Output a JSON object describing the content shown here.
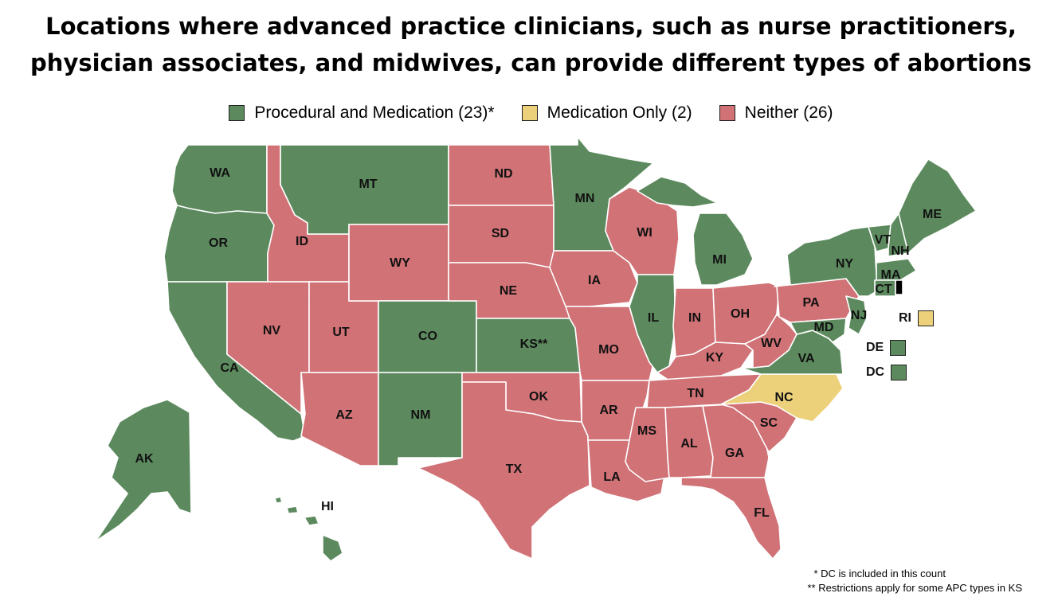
{
  "title": {
    "line1": "Locations where advanced practice clinicians, such as nurse practitioners,",
    "line2": "physician associates, and midwives, can provide different types of abortions"
  },
  "colors": {
    "both": "#5c8a5e",
    "medication": "#ecd17a",
    "neither": "#d07276"
  },
  "legend": [
    {
      "key": "both",
      "label": "Procedural and Medication (23)*"
    },
    {
      "key": "medication",
      "label": "Medication Only (2)"
    },
    {
      "key": "neither",
      "label": "Neither (26)"
    }
  ],
  "states": {
    "WA": {
      "label": "WA",
      "category": "both"
    },
    "OR": {
      "label": "OR",
      "category": "both"
    },
    "CA": {
      "label": "CA",
      "category": "both"
    },
    "MT": {
      "label": "MT",
      "category": "both"
    },
    "CO": {
      "label": "CO",
      "category": "both"
    },
    "NM": {
      "label": "NM",
      "category": "both"
    },
    "KS": {
      "label": "KS**",
      "category": "both"
    },
    "MN": {
      "label": "MN",
      "category": "both"
    },
    "IL": {
      "label": "IL",
      "category": "both"
    },
    "MI": {
      "label": "MI",
      "category": "both"
    },
    "NY": {
      "label": "NY",
      "category": "both"
    },
    "VT": {
      "label": "VT",
      "category": "both"
    },
    "NH": {
      "label": "NH",
      "category": "both"
    },
    "ME": {
      "label": "ME",
      "category": "both"
    },
    "MA": {
      "label": "MA",
      "category": "both"
    },
    "CT": {
      "label": "CT",
      "category": "both"
    },
    "NJ": {
      "label": "NJ",
      "category": "both"
    },
    "MD": {
      "label": "MD",
      "category": "both"
    },
    "VA": {
      "label": "VA",
      "category": "both"
    },
    "AK": {
      "label": "AK",
      "category": "both"
    },
    "HI": {
      "label": "HI",
      "category": "both"
    },
    "NC": {
      "label": "NC",
      "category": "medication"
    },
    "ID": {
      "label": "ID",
      "category": "neither"
    },
    "NV": {
      "label": "NV",
      "category": "neither"
    },
    "UT": {
      "label": "UT",
      "category": "neither"
    },
    "AZ": {
      "label": "AZ",
      "category": "neither"
    },
    "WY": {
      "label": "WY",
      "category": "neither"
    },
    "ND": {
      "label": "ND",
      "category": "neither"
    },
    "SD": {
      "label": "SD",
      "category": "neither"
    },
    "NE": {
      "label": "NE",
      "category": "neither"
    },
    "OK": {
      "label": "OK",
      "category": "neither"
    },
    "TX": {
      "label": "TX",
      "category": "neither"
    },
    "IA": {
      "label": "IA",
      "category": "neither"
    },
    "MO": {
      "label": "MO",
      "category": "neither"
    },
    "AR": {
      "label": "AR",
      "category": "neither"
    },
    "LA": {
      "label": "LA",
      "category": "neither"
    },
    "WI": {
      "label": "WI",
      "category": "neither"
    },
    "IN": {
      "label": "IN",
      "category": "neither"
    },
    "OH": {
      "label": "OH",
      "category": "neither"
    },
    "KY": {
      "label": "KY",
      "category": "neither"
    },
    "TN": {
      "label": "TN",
      "category": "neither"
    },
    "MS": {
      "label": "MS",
      "category": "neither"
    },
    "AL": {
      "label": "AL",
      "category": "neither"
    },
    "GA": {
      "label": "GA",
      "category": "neither"
    },
    "FL": {
      "label": "FL",
      "category": "neither"
    },
    "SC": {
      "label": "SC",
      "category": "neither"
    },
    "WV": {
      "label": "WV",
      "category": "neither"
    },
    "PA": {
      "label": "PA",
      "category": "neither"
    }
  },
  "small_states": [
    {
      "label": "RI",
      "category": "medication"
    },
    {
      "label": "DE",
      "category": "both"
    },
    {
      "label": "DC",
      "category": "both"
    }
  ],
  "footnotes": {
    "note1": "* DC is included in this count",
    "note2": "** Restrictions apply for some APC types in KS"
  }
}
